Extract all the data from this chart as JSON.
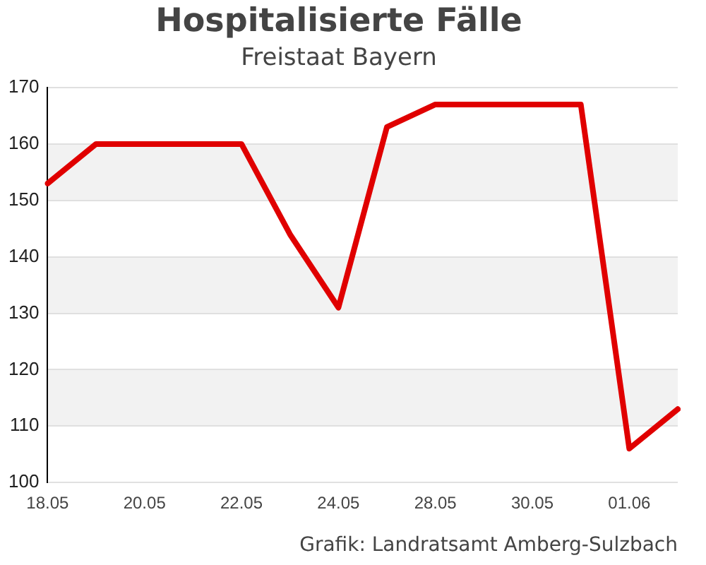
{
  "chart_data": {
    "type": "line",
    "title": "Hospitalisierte Fälle",
    "subtitle": "Freistaat Bayern",
    "categories": [
      "18.05",
      null,
      "20.05",
      null,
      "22.05",
      null,
      "24.05",
      null,
      "28.05",
      null,
      "30.05",
      null,
      "01.06",
      null
    ],
    "series": [
      {
        "color": "#e00000",
        "values": [
          153,
          160,
          160,
          160,
          160,
          144,
          131,
          163,
          167,
          167,
          167,
          167,
          106,
          113
        ]
      }
    ],
    "ylim": [
      100,
      170
    ],
    "yticks": [
      100,
      110,
      120,
      130,
      140,
      150,
      160,
      170
    ],
    "grid": "y",
    "legend": false,
    "marker": "none",
    "line_style": "solid",
    "annotations": [
      "Grafik: Landratsamt Amberg-Sulzbach"
    ]
  }
}
